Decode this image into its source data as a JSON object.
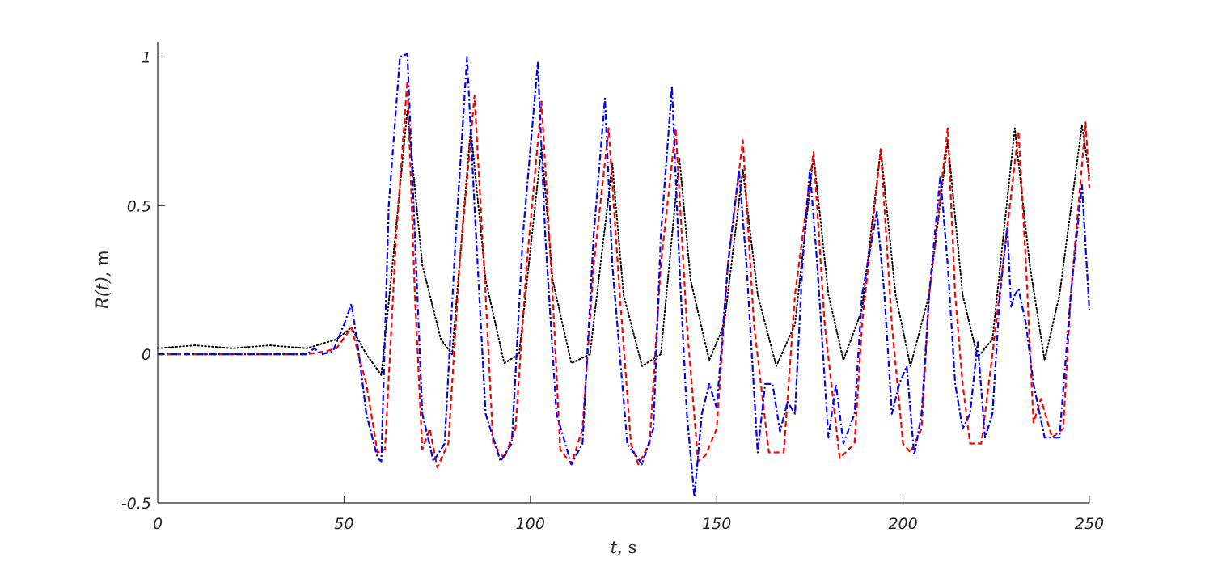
{
  "chart_data": {
    "type": "line",
    "xlabel_var": "t",
    "xlabel_unit": ", s",
    "ylabel_var": "R(t)",
    "ylabel_unit": ", m",
    "xlim": [
      0,
      250
    ],
    "ylim": [
      -0.5,
      1.05
    ],
    "xticks": [
      0,
      50,
      100,
      150,
      200,
      250
    ],
    "yticks": [
      -0.5,
      0,
      0.5,
      1
    ],
    "xtick_labels": [
      "0",
      "50",
      "100",
      "150",
      "200",
      "250"
    ],
    "ytick_labels": [
      "-0.5",
      "0",
      "0.5",
      "1"
    ],
    "grid": false,
    "legend": "none",
    "series": [
      {
        "color": "#000000",
        "style": "dotted",
        "points": [
          [
            0,
            0.02
          ],
          [
            10,
            0.03
          ],
          [
            20,
            0.02
          ],
          [
            30,
            0.03
          ],
          [
            40,
            0.02
          ],
          [
            48,
            0.05
          ],
          [
            52,
            0.09
          ],
          [
            56,
            0.0
          ],
          [
            60,
            -0.07
          ],
          [
            63,
            0.3
          ],
          [
            67,
            0.82
          ],
          [
            71,
            0.3
          ],
          [
            76,
            0.05
          ],
          [
            79,
            0.0
          ],
          [
            84,
            0.76
          ],
          [
            88,
            0.25
          ],
          [
            93,
            -0.03
          ],
          [
            97,
            0.0
          ],
          [
            103,
            0.7
          ],
          [
            106,
            0.25
          ],
          [
            111,
            -0.03
          ],
          [
            116,
            0.0
          ],
          [
            122,
            0.64
          ],
          [
            125,
            0.2
          ],
          [
            130,
            -0.04
          ],
          [
            135,
            0.0
          ],
          [
            140,
            0.66
          ],
          [
            143,
            0.25
          ],
          [
            148,
            -0.02
          ],
          [
            152,
            0.1
          ],
          [
            157,
            0.62
          ],
          [
            161,
            0.2
          ],
          [
            166,
            -0.04
          ],
          [
            171,
            0.1
          ],
          [
            176,
            0.67
          ],
          [
            180,
            0.2
          ],
          [
            184,
            -0.02
          ],
          [
            189,
            0.15
          ],
          [
            194,
            0.69
          ],
          [
            198,
            0.2
          ],
          [
            202,
            -0.04
          ],
          [
            207,
            0.2
          ],
          [
            212,
            0.72
          ],
          [
            216,
            0.2
          ],
          [
            220,
            -0.01
          ],
          [
            224,
            0.05
          ],
          [
            230,
            0.76
          ],
          [
            234,
            0.3
          ],
          [
            238,
            -0.02
          ],
          [
            242,
            0.2
          ],
          [
            248,
            0.77
          ],
          [
            250,
            0.6
          ]
        ]
      },
      {
        "color": "#ff0000",
        "style": "dashed",
        "points": [
          [
            0,
            0.0
          ],
          [
            40,
            0.0
          ],
          [
            45,
            0.01
          ],
          [
            48,
            0.02
          ],
          [
            52,
            0.09
          ],
          [
            56,
            -0.1
          ],
          [
            59,
            -0.33
          ],
          [
            61,
            -0.32
          ],
          [
            64,
            0.4
          ],
          [
            67,
            0.92
          ],
          [
            69,
            0.2
          ],
          [
            71,
            -0.32
          ],
          [
            73,
            -0.25
          ],
          [
            75,
            -0.38
          ],
          [
            78,
            -0.3
          ],
          [
            81,
            0.3
          ],
          [
            85,
            0.87
          ],
          [
            88,
            0.2
          ],
          [
            90,
            -0.3
          ],
          [
            93,
            -0.35
          ],
          [
            96,
            -0.25
          ],
          [
            99,
            0.3
          ],
          [
            103,
            0.85
          ],
          [
            106,
            0.2
          ],
          [
            108,
            -0.32
          ],
          [
            111,
            -0.37
          ],
          [
            114,
            -0.25
          ],
          [
            117,
            0.3
          ],
          [
            121,
            0.76
          ],
          [
            124,
            0.2
          ],
          [
            127,
            -0.3
          ],
          [
            129,
            -0.37
          ],
          [
            132,
            -0.3
          ],
          [
            135,
            0.3
          ],
          [
            139,
            0.76
          ],
          [
            142,
            0.1
          ],
          [
            145,
            -0.36
          ],
          [
            147,
            -0.34
          ],
          [
            150,
            -0.25
          ],
          [
            153,
            0.3
          ],
          [
            157,
            0.72
          ],
          [
            160,
            0.1
          ],
          [
            164,
            -0.33
          ],
          [
            168,
            -0.33
          ],
          [
            171,
            0.2
          ],
          [
            176,
            0.68
          ],
          [
            179,
            0.1
          ],
          [
            183,
            -0.35
          ],
          [
            187,
            -0.3
          ],
          [
            189,
            0.1
          ],
          [
            194,
            0.69
          ],
          [
            197,
            0.1
          ],
          [
            200,
            -0.3
          ],
          [
            202,
            -0.33
          ],
          [
            205,
            -0.25
          ],
          [
            207,
            0.2
          ],
          [
            212,
            0.76
          ],
          [
            214,
            0.2
          ],
          [
            216,
            -0.1
          ],
          [
            218,
            -0.3
          ],
          [
            221,
            -0.3
          ],
          [
            224,
            0.0
          ],
          [
            231,
            0.75
          ],
          [
            233,
            0.3
          ],
          [
            235,
            -0.23
          ],
          [
            237,
            -0.15
          ],
          [
            240,
            -0.28
          ],
          [
            243,
            -0.25
          ],
          [
            245,
            0.2
          ],
          [
            249,
            0.78
          ],
          [
            250,
            0.56
          ]
        ]
      },
      {
        "color": "#0000ff",
        "style": "dashdot",
        "points": [
          [
            0,
            0.0
          ],
          [
            40,
            0.0
          ],
          [
            42,
            0.02
          ],
          [
            44,
            0.0
          ],
          [
            47,
            0.01
          ],
          [
            50,
            0.1
          ],
          [
            52,
            0.17
          ],
          [
            54,
            0.0
          ],
          [
            56,
            -0.2
          ],
          [
            59,
            -0.35
          ],
          [
            60,
            -0.36
          ],
          [
            62,
            0.5
          ],
          [
            65,
            1.0
          ],
          [
            67,
            1.01
          ],
          [
            69,
            0.4
          ],
          [
            71,
            -0.2
          ],
          [
            74,
            -0.36
          ],
          [
            77,
            -0.3
          ],
          [
            80,
            0.4
          ],
          [
            83,
            1.0
          ],
          [
            85,
            0.5
          ],
          [
            88,
            -0.2
          ],
          [
            92,
            -0.36
          ],
          [
            95,
            -0.3
          ],
          [
            98,
            0.4
          ],
          [
            102,
            0.98
          ],
          [
            104,
            0.4
          ],
          [
            107,
            -0.2
          ],
          [
            111,
            -0.37
          ],
          [
            114,
            -0.3
          ],
          [
            117,
            0.4
          ],
          [
            120,
            0.86
          ],
          [
            122,
            0.3
          ],
          [
            126,
            -0.3
          ],
          [
            130,
            -0.37
          ],
          [
            133,
            -0.25
          ],
          [
            135,
            0.4
          ],
          [
            138,
            0.9
          ],
          [
            140,
            0.3
          ],
          [
            142,
            -0.2
          ],
          [
            144,
            -0.48
          ],
          [
            146,
            -0.2
          ],
          [
            148,
            -0.1
          ],
          [
            150,
            -0.18
          ],
          [
            153,
            0.3
          ],
          [
            156,
            0.62
          ],
          [
            158,
            0.3
          ],
          [
            161,
            -0.33
          ],
          [
            163,
            -0.1
          ],
          [
            165,
            -0.1
          ],
          [
            167,
            -0.26
          ],
          [
            169,
            -0.16
          ],
          [
            171,
            -0.2
          ],
          [
            173,
            0.3
          ],
          [
            175,
            0.62
          ],
          [
            177,
            0.3
          ],
          [
            180,
            -0.28
          ],
          [
            182,
            -0.1
          ],
          [
            184,
            -0.3
          ],
          [
            187,
            -0.2
          ],
          [
            189,
            0.2
          ],
          [
            193,
            0.48
          ],
          [
            195,
            0.2
          ],
          [
            197,
            -0.2
          ],
          [
            199,
            -0.1
          ],
          [
            201,
            -0.04
          ],
          [
            203,
            -0.34
          ],
          [
            205,
            -0.2
          ],
          [
            207,
            0.2
          ],
          [
            210,
            0.6
          ],
          [
            212,
            0.3
          ],
          [
            214,
            -0.1
          ],
          [
            216,
            -0.25
          ],
          [
            218,
            -0.2
          ],
          [
            220,
            0.04
          ],
          [
            222,
            -0.28
          ],
          [
            224,
            -0.2
          ],
          [
            226,
            0.2
          ],
          [
            228,
            0.43
          ],
          [
            229,
            0.16
          ],
          [
            230,
            0.2
          ],
          [
            231,
            0.22
          ],
          [
            233,
            0.1
          ],
          [
            235,
            -0.1
          ],
          [
            238,
            -0.28
          ],
          [
            242,
            -0.28
          ],
          [
            245,
            0.2
          ],
          [
            248,
            0.57
          ],
          [
            250,
            0.15
          ]
        ]
      }
    ]
  }
}
